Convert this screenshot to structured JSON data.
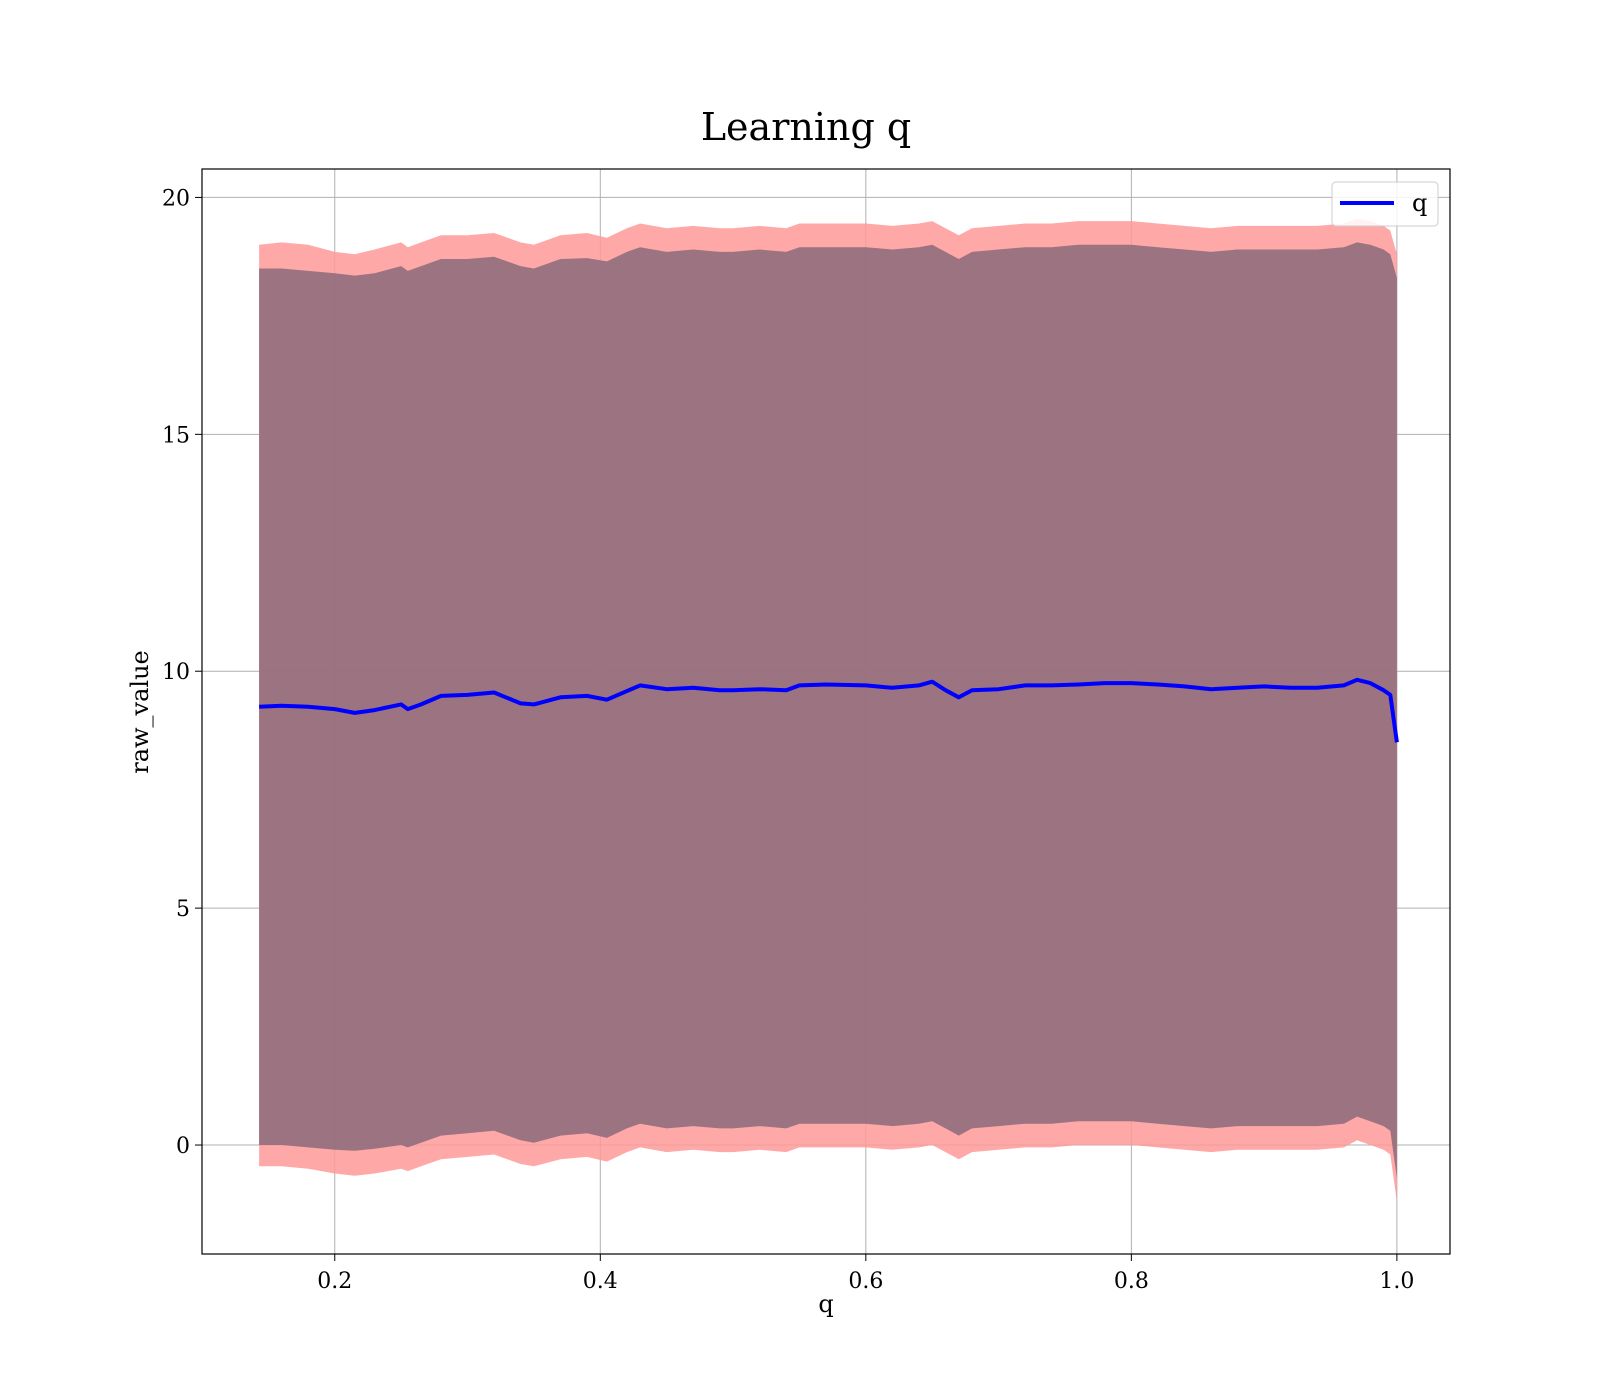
{
  "chart_data": {
    "type": "line",
    "title": "Learning q",
    "xlabel": "q",
    "ylabel": "raw_value",
    "xlim": [
      0.1,
      1.04
    ],
    "ylim": [
      -2.3,
      20.6
    ],
    "xticks": [
      0.2,
      0.4,
      0.6,
      0.8,
      1.0
    ],
    "xtick_labels": [
      "0.2",
      "0.4",
      "0.6",
      "0.8",
      "1.0"
    ],
    "yticks": [
      0,
      5,
      10,
      15,
      20
    ],
    "ytick_labels": [
      "0",
      "5",
      "10",
      "15",
      "20"
    ],
    "grid": true,
    "legend_position": "top-right",
    "series": [
      {
        "name": "q",
        "color": "#0000ff",
        "x": [
          0.143,
          0.16,
          0.18,
          0.2,
          0.215,
          0.23,
          0.25,
          0.255,
          0.265,
          0.28,
          0.3,
          0.32,
          0.34,
          0.35,
          0.37,
          0.39,
          0.405,
          0.42,
          0.43,
          0.45,
          0.47,
          0.49,
          0.5,
          0.52,
          0.54,
          0.55,
          0.57,
          0.6,
          0.62,
          0.64,
          0.65,
          0.66,
          0.67,
          0.68,
          0.7,
          0.72,
          0.74,
          0.76,
          0.78,
          0.8,
          0.82,
          0.84,
          0.86,
          0.88,
          0.9,
          0.92,
          0.94,
          0.96,
          0.97,
          0.98,
          0.99,
          0.995,
          1.0
        ],
        "y": [
          9.25,
          9.27,
          9.25,
          9.2,
          9.12,
          9.18,
          9.3,
          9.2,
          9.3,
          9.48,
          9.5,
          9.55,
          9.32,
          9.3,
          9.45,
          9.48,
          9.4,
          9.58,
          9.7,
          9.62,
          9.65,
          9.6,
          9.6,
          9.62,
          9.6,
          9.7,
          9.72,
          9.7,
          9.65,
          9.7,
          9.78,
          9.6,
          9.45,
          9.6,
          9.62,
          9.7,
          9.7,
          9.72,
          9.75,
          9.75,
          9.72,
          9.68,
          9.62,
          9.65,
          9.68,
          9.65,
          9.65,
          9.7,
          9.82,
          9.75,
          9.6,
          9.5,
          8.5
        ]
      },
      {
        "name": "",
        "type": "area",
        "color": "#ff9999",
        "x": [
          0.143,
          0.16,
          0.18,
          0.2,
          0.215,
          0.23,
          0.25,
          0.255,
          0.265,
          0.28,
          0.3,
          0.32,
          0.34,
          0.35,
          0.37,
          0.39,
          0.405,
          0.42,
          0.43,
          0.45,
          0.47,
          0.49,
          0.5,
          0.52,
          0.54,
          0.55,
          0.57,
          0.6,
          0.62,
          0.64,
          0.65,
          0.66,
          0.67,
          0.68,
          0.7,
          0.72,
          0.74,
          0.76,
          0.78,
          0.8,
          0.82,
          0.84,
          0.86,
          0.88,
          0.9,
          0.92,
          0.94,
          0.96,
          0.97,
          0.98,
          0.99,
          0.995,
          1.0
        ],
        "upper": [
          19.0,
          19.05,
          19.0,
          18.85,
          18.8,
          18.9,
          19.05,
          18.95,
          19.05,
          19.2,
          19.2,
          19.25,
          19.05,
          19.0,
          19.2,
          19.25,
          19.15,
          19.35,
          19.45,
          19.35,
          19.4,
          19.35,
          19.35,
          19.4,
          19.35,
          19.45,
          19.45,
          19.45,
          19.4,
          19.45,
          19.5,
          19.35,
          19.2,
          19.35,
          19.4,
          19.45,
          19.45,
          19.5,
          19.5,
          19.5,
          19.45,
          19.4,
          19.35,
          19.4,
          19.4,
          19.4,
          19.4,
          19.45,
          19.55,
          19.5,
          19.4,
          19.3,
          18.8
        ],
        "lower": [
          -0.45,
          -0.45,
          -0.5,
          -0.6,
          -0.65,
          -0.6,
          -0.5,
          -0.55,
          -0.45,
          -0.3,
          -0.25,
          -0.2,
          -0.4,
          -0.45,
          -0.3,
          -0.25,
          -0.35,
          -0.15,
          -0.05,
          -0.15,
          -0.1,
          -0.15,
          -0.15,
          -0.1,
          -0.15,
          -0.05,
          -0.05,
          -0.05,
          -0.1,
          -0.05,
          0.0,
          -0.15,
          -0.3,
          -0.15,
          -0.1,
          -0.05,
          -0.05,
          0.0,
          0.0,
          0.0,
          -0.05,
          -0.1,
          -0.15,
          -0.1,
          -0.1,
          -0.1,
          -0.1,
          -0.05,
          0.1,
          0.0,
          -0.1,
          -0.2,
          -1.2
        ]
      },
      {
        "name": "",
        "type": "area",
        "color": "#8b6a7a",
        "x": [
          0.143,
          0.16,
          0.18,
          0.2,
          0.215,
          0.23,
          0.25,
          0.255,
          0.265,
          0.28,
          0.3,
          0.32,
          0.34,
          0.35,
          0.37,
          0.39,
          0.405,
          0.42,
          0.43,
          0.45,
          0.47,
          0.49,
          0.5,
          0.52,
          0.54,
          0.55,
          0.57,
          0.6,
          0.62,
          0.64,
          0.65,
          0.66,
          0.67,
          0.68,
          0.7,
          0.72,
          0.74,
          0.76,
          0.78,
          0.8,
          0.82,
          0.84,
          0.86,
          0.88,
          0.9,
          0.92,
          0.94,
          0.96,
          0.97,
          0.98,
          0.99,
          0.995,
          1.0
        ],
        "upper": [
          18.5,
          18.5,
          18.45,
          18.4,
          18.35,
          18.4,
          18.55,
          18.45,
          18.55,
          18.7,
          18.7,
          18.75,
          18.55,
          18.5,
          18.7,
          18.72,
          18.65,
          18.85,
          18.95,
          18.85,
          18.9,
          18.85,
          18.85,
          18.9,
          18.85,
          18.95,
          18.95,
          18.95,
          18.9,
          18.95,
          19.0,
          18.85,
          18.7,
          18.85,
          18.9,
          18.95,
          18.95,
          19.0,
          19.0,
          19.0,
          18.95,
          18.9,
          18.85,
          18.9,
          18.9,
          18.9,
          18.9,
          18.95,
          19.05,
          19.0,
          18.9,
          18.8,
          18.3
        ],
        "lower": [
          0.0,
          0.0,
          -0.05,
          -0.1,
          -0.12,
          -0.08,
          0.0,
          -0.05,
          0.05,
          0.2,
          0.25,
          0.3,
          0.1,
          0.05,
          0.2,
          0.25,
          0.15,
          0.35,
          0.45,
          0.35,
          0.4,
          0.35,
          0.35,
          0.4,
          0.35,
          0.45,
          0.45,
          0.45,
          0.4,
          0.45,
          0.5,
          0.35,
          0.2,
          0.35,
          0.4,
          0.45,
          0.45,
          0.5,
          0.5,
          0.5,
          0.45,
          0.4,
          0.35,
          0.4,
          0.4,
          0.4,
          0.4,
          0.45,
          0.6,
          0.5,
          0.4,
          0.3,
          -0.7
        ]
      }
    ]
  }
}
